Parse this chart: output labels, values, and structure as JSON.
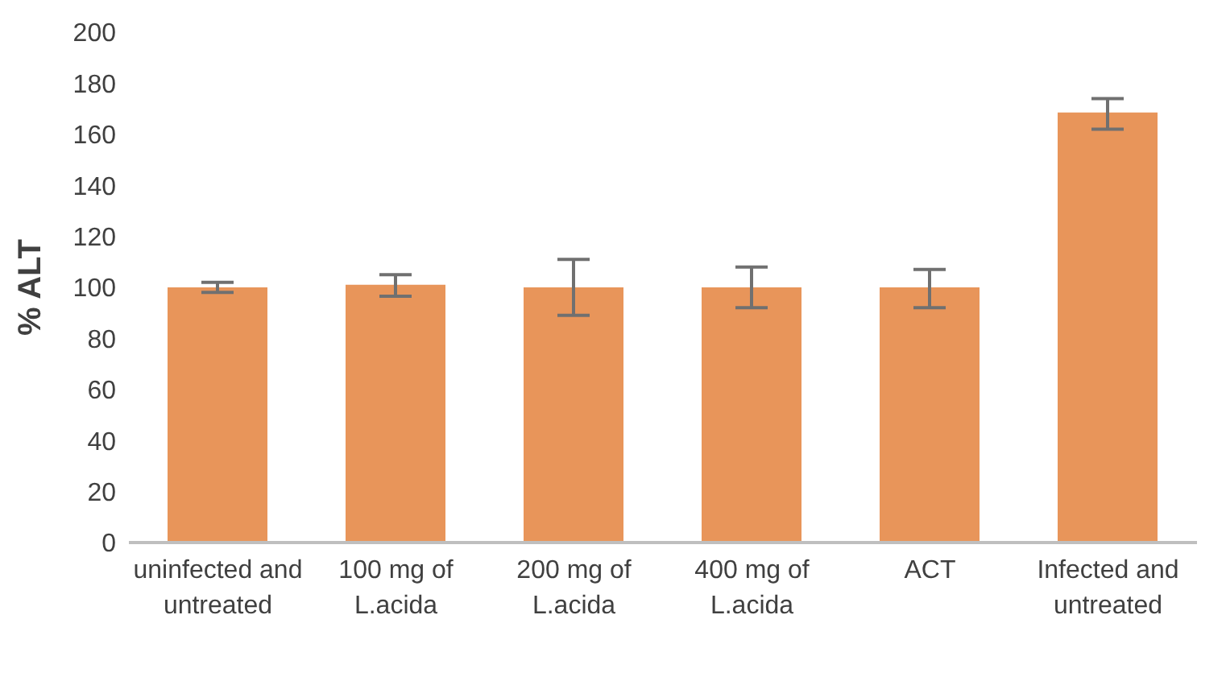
{
  "chart_data": {
    "type": "bar",
    "ylabel": "% ALT",
    "categories": [
      "uninfected and untreated",
      "100 mg of L.acida",
      "200 mg of L.acida",
      "400 mg of L.acida",
      "ACT",
      "Infected and untreated"
    ],
    "values": [
      100,
      101,
      100,
      100,
      100,
      168.5
    ],
    "errors": [
      [
        98,
        102
      ],
      [
        96.5,
        105
      ],
      [
        89,
        111
      ],
      [
        92,
        108
      ],
      [
        92,
        107
      ],
      [
        162,
        174
      ]
    ],
    "color": "#e8955a",
    "ylim": [
      0,
      200
    ],
    "yticks": [
      0,
      20,
      40,
      60,
      80,
      100,
      120,
      140,
      160,
      180,
      200
    ],
    "grid": false
  }
}
